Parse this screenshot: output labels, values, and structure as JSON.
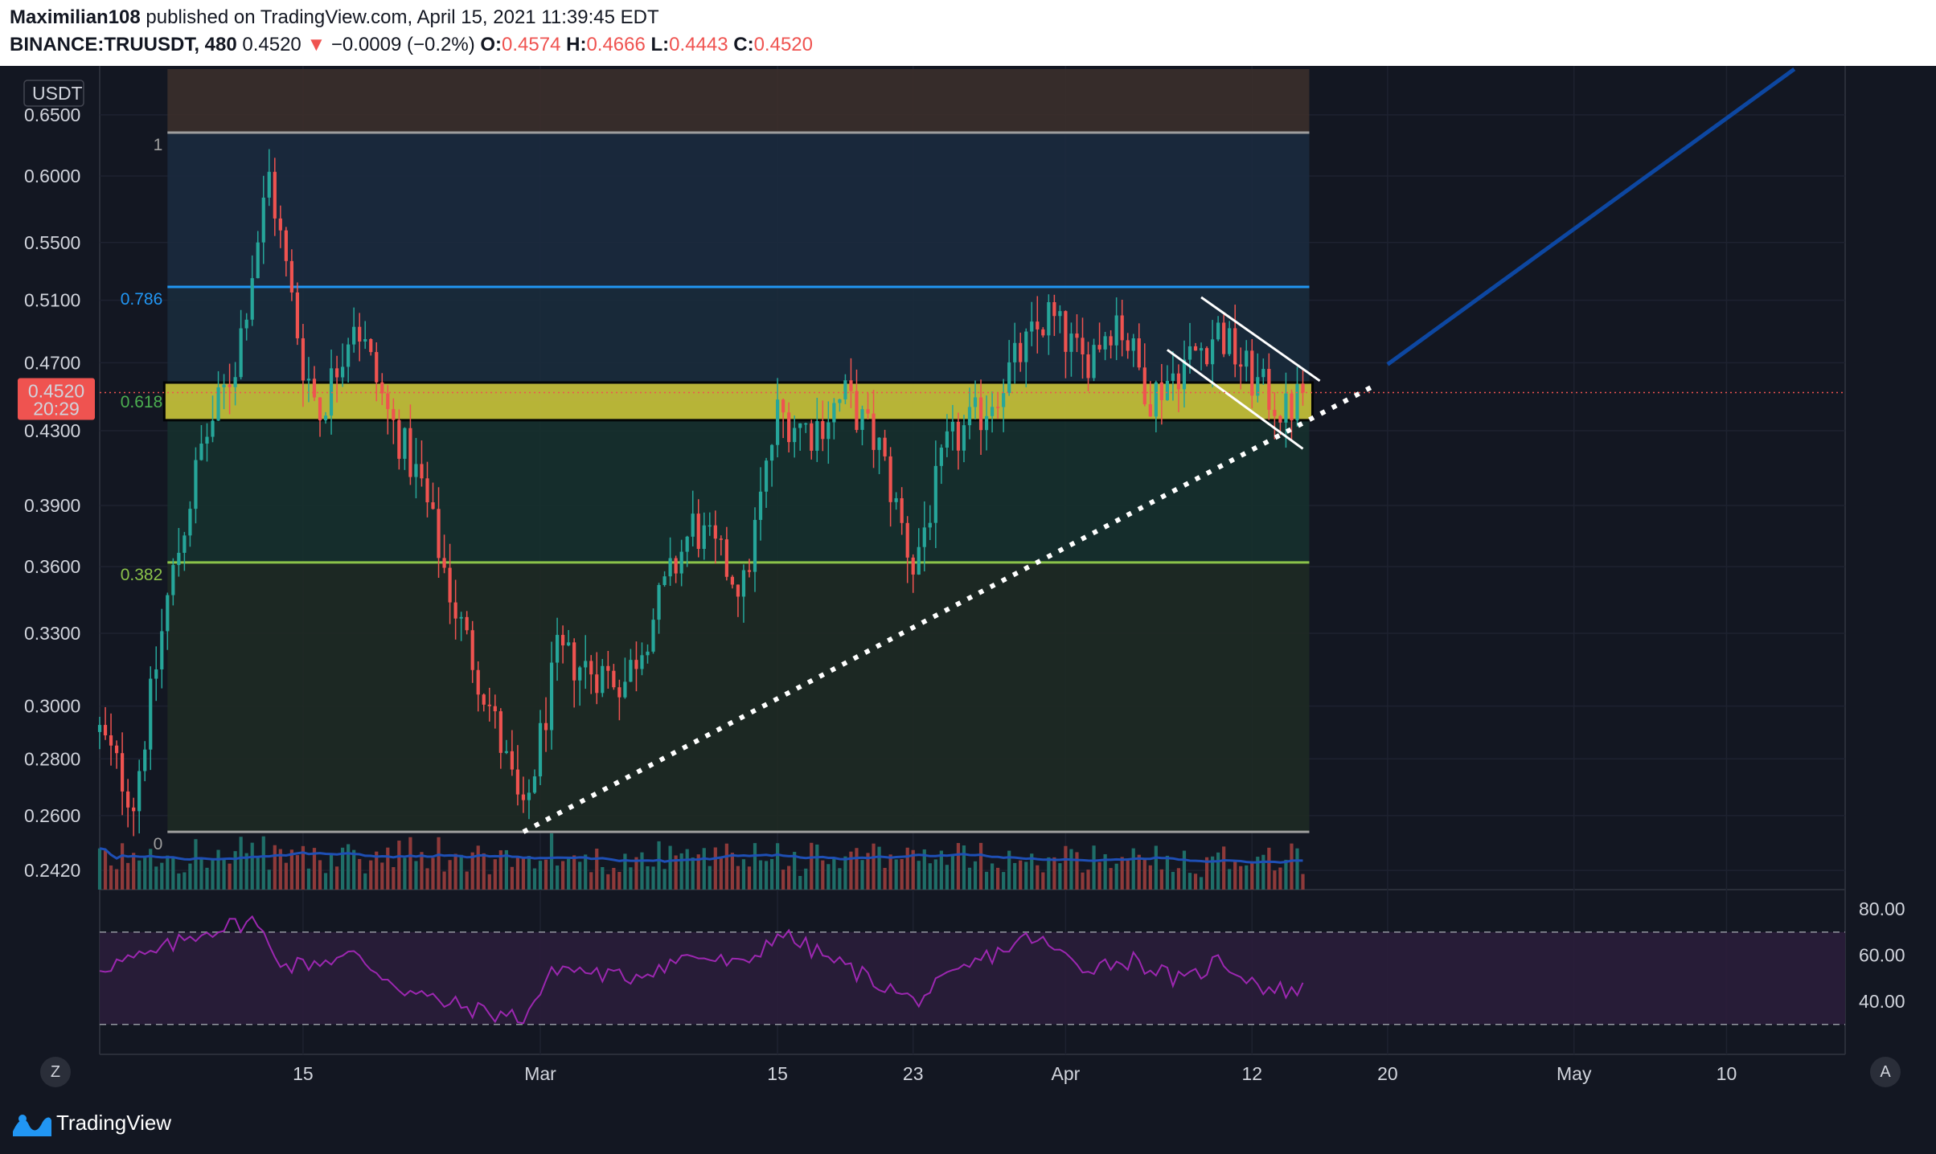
{
  "header": {
    "publisher": "Maximilian108",
    "published_text": "published on TradingView.com, April 15, 2021 11:39:45 EDT",
    "symbol": "BINANCE:TRUUSDT, 480",
    "last_price": "0.4520",
    "change": "−0.0009 (−0.2%)",
    "open_label": "O:",
    "open": "0.4574",
    "high_label": "H:",
    "high": "0.4666",
    "low_label": "L:",
    "low": "0.4443",
    "close_label": "C:",
    "close": "0.4520"
  },
  "price_axis": {
    "currency": "USDT",
    "ticks": [
      "0.6500",
      "0.6000",
      "0.5500",
      "0.5100",
      "0.4700",
      "0.4300",
      "0.3900",
      "0.3600",
      "0.3300",
      "0.3000",
      "0.2800",
      "0.2600",
      "0.2420"
    ],
    "current_price": "0.4520",
    "countdown": "20:29"
  },
  "rsi_axis": {
    "ticks": [
      "80.00",
      "60.00",
      "40.00"
    ]
  },
  "time_axis": {
    "ticks": [
      "15",
      "Mar",
      "15",
      "23",
      "Apr",
      "12",
      "20",
      "May",
      "10"
    ]
  },
  "fib_labels": {
    "l1": "1",
    "l786": "0.786",
    "l618": "0.618",
    "l382": "0.382",
    "l0": "0"
  },
  "buttons": {
    "left": "Z",
    "right": "A"
  },
  "branding": {
    "name": "TradingView"
  },
  "colors": {
    "background": "#131722",
    "up": "#26a69a",
    "down": "#ef5350",
    "fib_786": "#2196f3",
    "fib_618_zone": "#d4cc3a",
    "fib_382": "#8bc34a",
    "rsi": "#9c27b0",
    "projection": "#0d47a1"
  },
  "chart_data": {
    "type": "candlestick",
    "symbol": "BINANCE:TRUUSDT",
    "interval": "480",
    "y_scale": "log",
    "ylim": [
      0.236,
      0.69
    ],
    "x_range": [
      "2021-02-03",
      "2021-05-17"
    ],
    "ohlc_visible_bar": {
      "open": 0.4574,
      "high": 0.4666,
      "low": 0.4443,
      "close": 0.452
    },
    "waypoints": [
      [
        "2021-02-03",
        0.29
      ],
      [
        "2021-02-05",
        0.265
      ],
      [
        "2021-02-07",
        0.345
      ],
      [
        "2021-02-09",
        0.42
      ],
      [
        "2021-02-11",
        0.47
      ],
      [
        "2021-02-13",
        0.6
      ],
      [
        "2021-02-15",
        0.47
      ],
      [
        "2021-02-16",
        0.44
      ],
      [
        "2021-02-18",
        0.5
      ],
      [
        "2021-02-20",
        0.44
      ],
      [
        "2021-02-22",
        0.4
      ],
      [
        "2021-02-24",
        0.34
      ],
      [
        "2021-02-26",
        0.3
      ],
      [
        "2021-02-28",
        0.258
      ],
      [
        "2021-03-02",
        0.32
      ],
      [
        "2021-03-06",
        0.31
      ],
      [
        "2021-03-10",
        0.38
      ],
      [
        "2021-03-13",
        0.35
      ],
      [
        "2021-03-15",
        0.44
      ],
      [
        "2021-03-17",
        0.43
      ],
      [
        "2021-03-19",
        0.45
      ],
      [
        "2021-03-21",
        0.42
      ],
      [
        "2021-03-23",
        0.36
      ],
      [
        "2021-03-25",
        0.42
      ],
      [
        "2021-03-27",
        0.44
      ],
      [
        "2021-03-29",
        0.47
      ],
      [
        "2021-03-31",
        0.5
      ],
      [
        "2021-04-02",
        0.47
      ],
      [
        "2021-04-04",
        0.5
      ],
      [
        "2021-04-06",
        0.45
      ],
      [
        "2021-04-08",
        0.47
      ],
      [
        "2021-04-10",
        0.49
      ],
      [
        "2021-04-12",
        0.46
      ],
      [
        "2021-04-14",
        0.44
      ],
      [
        "2021-04-15",
        0.452
      ]
    ],
    "fibonacci": {
      "1": 0.635,
      "0.786": 0.519,
      "0.618": 0.447,
      "0.382": 0.362,
      "0": 0.2545,
      "zone_618": [
        0.436,
        0.458
      ]
    },
    "trendline": {
      "from": [
        "2021-02-28",
        0.2545
      ],
      "to": [
        "2021-04-19",
        0.455
      ],
      "style": "dotted"
    },
    "channel_upper": {
      "from": [
        "2021-04-09",
        0.512
      ],
      "to": [
        "2021-04-16",
        0.459
      ]
    },
    "channel_lower": {
      "from": [
        "2021-04-07",
        0.478
      ],
      "to": [
        "2021-04-15",
        0.42
      ]
    },
    "projection": {
      "from": [
        "2021-04-20",
        0.469
      ],
      "to": [
        "2021-05-14",
        0.69
      ]
    },
    "rsi": {
      "levels": [
        70,
        30
      ],
      "ylim": [
        24,
        86
      ],
      "waypoints": [
        [
          "2021-02-03",
          55
        ],
        [
          "2021-02-06",
          60
        ],
        [
          "2021-02-09",
          70
        ],
        [
          "2021-02-12",
          75
        ],
        [
          "2021-02-14",
          55
        ],
        [
          "2021-02-18",
          60
        ],
        [
          "2021-02-21",
          45
        ],
        [
          "2021-02-23",
          40
        ],
        [
          "2021-02-26",
          35
        ],
        [
          "2021-02-28",
          33
        ],
        [
          "2021-03-02",
          55
        ],
        [
          "2021-03-06",
          50
        ],
        [
          "2021-03-10",
          60
        ],
        [
          "2021-03-13",
          55
        ],
        [
          "2021-03-15",
          70
        ],
        [
          "2021-03-19",
          55
        ],
        [
          "2021-03-21",
          48
        ],
        [
          "2021-03-23",
          40
        ],
        [
          "2021-03-27",
          58
        ],
        [
          "2021-03-30",
          68
        ],
        [
          "2021-04-02",
          55
        ],
        [
          "2021-04-05",
          58
        ],
        [
          "2021-04-08",
          48
        ],
        [
          "2021-04-10",
          58
        ],
        [
          "2021-04-13",
          45
        ],
        [
          "2021-04-15",
          45
        ]
      ]
    }
  }
}
